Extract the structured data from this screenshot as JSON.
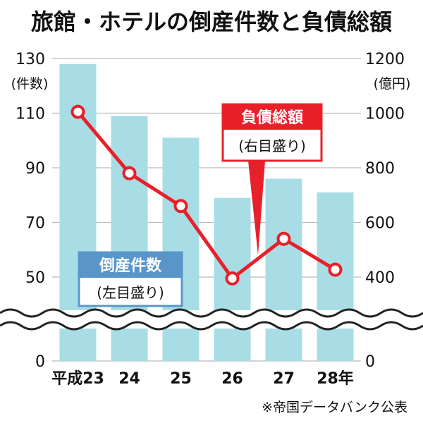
{
  "chart_data": {
    "title": "旅館・ホテルの倒産件数と負債総額",
    "type": "bar+line",
    "categories": [
      "平成23",
      "24",
      "25",
      "26",
      "27",
      "28年"
    ],
    "left_axis": {
      "unit": "(件数)",
      "ticks": [
        "130",
        "110",
        "90",
        "70",
        "50",
        "0"
      ],
      "tick_values": [
        130,
        110,
        90,
        70,
        50,
        0
      ],
      "axis_break": "between 0 and 50"
    },
    "right_axis": {
      "unit": "(億円)",
      "ticks": [
        "1200",
        "1000",
        "800",
        "600",
        "400",
        "0"
      ],
      "tick_values": [
        1200,
        1000,
        800,
        600,
        400,
        0
      ],
      "axis_break": "between 0 and 400"
    },
    "series": [
      {
        "name": "倒産件数",
        "sub": "(左目盛り)",
        "type": "bar",
        "axis": "left",
        "color": "#a8dde6",
        "values": [
          128,
          109,
          101,
          79,
          86,
          81
        ]
      },
      {
        "name": "負債総額",
        "sub": "(右目盛り)",
        "type": "line",
        "axis": "right",
        "color": "#e8202a",
        "values": [
          1005,
          780,
          660,
          395,
          540,
          427
        ]
      }
    ],
    "source_note": "※帝国データバンク公表",
    "label_colors": {
      "red": "#e8202a",
      "blue": "#5a95c8"
    }
  }
}
